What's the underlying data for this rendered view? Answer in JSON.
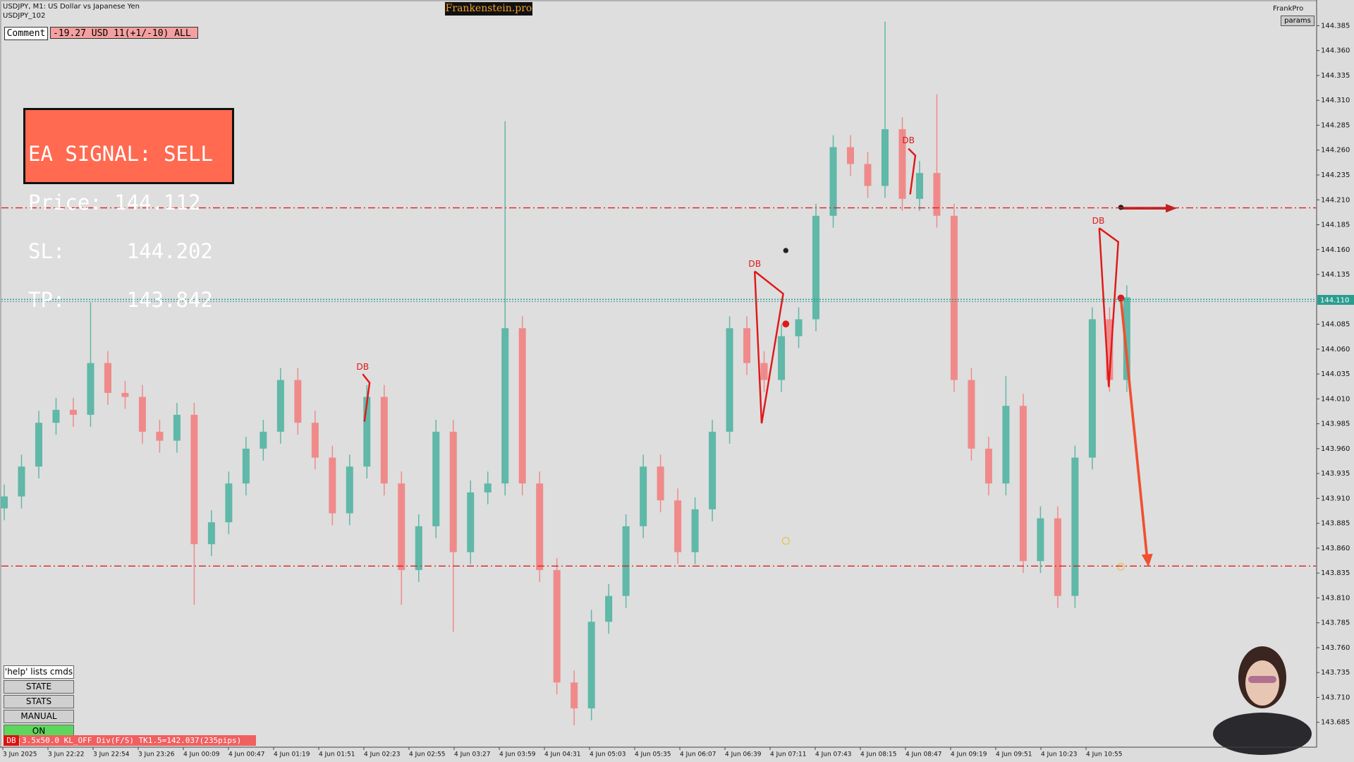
{
  "header": {
    "symbol": "USDJPY, M1:  US Dollar vs Japanese Yen",
    "account": "USDJPY_102",
    "brand": "Frankenstein.pro",
    "right_name": "FrankPro",
    "params": "params"
  },
  "comment": {
    "button": "Comment",
    "text": "-19.27 USD 11(+1/-10) ALL"
  },
  "signal": {
    "lines": [
      "EA SIGNAL: SELL",
      "Price: 144.112",
      "SL:     144.202",
      "TP:     143.842"
    ]
  },
  "buttons": [
    "'help' lists cmds",
    "STATE",
    "STATS",
    "MANUAL",
    "ON"
  ],
  "status": {
    "tag": "DB",
    "text": "3.5x50.0 KL_OFF Div(F/S) TK1.5=142.037(235pips)"
  },
  "patterns": [
    "DB",
    "DB",
    "DB",
    "DB"
  ],
  "chart_data": {
    "type": "candlestick",
    "open": [
      143.9,
      143.912,
      143.942,
      143.986,
      143.999,
      143.994,
      144.046,
      144.016,
      144.012,
      143.977,
      143.968,
      143.994,
      143.864,
      143.886,
      143.925,
      143.96,
      143.977,
      144.029,
      143.986,
      143.951,
      143.895,
      143.942,
      144.012,
      143.925,
      143.838,
      143.882,
      143.977,
      143.856,
      143.916,
      143.925,
      144.081,
      143.925,
      143.838,
      143.725,
      143.699,
      143.786,
      143.812,
      143.882,
      143.942,
      143.908,
      143.856,
      143.899,
      143.977,
      144.081,
      144.046,
      144.029,
      144.073,
      144.09,
      144.194,
      144.263,
      144.246,
      144.224,
      144.281,
      144.211,
      144.237,
      144.194,
      144.029,
      143.96,
      143.925,
      144.003,
      143.847,
      143.89,
      143.812,
      143.951,
      144.09,
      144.029
    ],
    "high": [
      143.924,
      143.954,
      143.998,
      144.011,
      144.011,
      144.107,
      144.058,
      144.028,
      144.024,
      143.989,
      144.006,
      144.006,
      143.898,
      143.937,
      143.972,
      143.989,
      144.041,
      144.041,
      143.998,
      143.963,
      143.954,
      144.024,
      144.024,
      143.937,
      143.894,
      143.989,
      143.989,
      143.928,
      143.937,
      144.289,
      144.093,
      143.937,
      143.85,
      143.737,
      143.798,
      143.824,
      143.894,
      143.954,
      143.954,
      143.92,
      143.911,
      143.989,
      144.093,
      144.093,
      144.058,
      144.085,
      144.102,
      144.206,
      144.275,
      144.275,
      144.258,
      144.389,
      144.293,
      144.249,
      144.316,
      144.206,
      144.041,
      143.972,
      144.033,
      144.015,
      143.902,
      143.902,
      143.963,
      144.102,
      144.102,
      144.124
    ],
    "low": [
      143.888,
      143.9,
      143.93,
      143.974,
      143.982,
      143.982,
      144.004,
      144.0,
      143.965,
      143.956,
      143.956,
      143.803,
      143.852,
      143.874,
      143.913,
      143.948,
      143.965,
      143.974,
      143.939,
      143.883,
      143.883,
      143.93,
      143.913,
      143.803,
      143.826,
      143.87,
      143.776,
      143.844,
      143.904,
      143.913,
      143.913,
      143.826,
      143.713,
      143.682,
      143.687,
      143.774,
      143.8,
      143.87,
      143.896,
      143.844,
      143.844,
      143.887,
      143.965,
      144.034,
      144.017,
      144.017,
      144.061,
      144.078,
      144.182,
      144.234,
      144.212,
      144.212,
      144.199,
      144.199,
      144.182,
      144.017,
      143.948,
      143.913,
      143.913,
      143.835,
      143.835,
      143.8,
      143.8,
      143.939,
      144.017,
      144.017
    ],
    "close": [
      143.912,
      143.942,
      143.986,
      143.999,
      143.994,
      144.046,
      144.016,
      144.012,
      143.977,
      143.968,
      143.994,
      143.864,
      143.886,
      143.925,
      143.96,
      143.977,
      144.029,
      143.986,
      143.951,
      143.895,
      143.942,
      144.012,
      143.925,
      143.838,
      143.882,
      143.977,
      143.856,
      143.916,
      143.925,
      144.081,
      143.925,
      143.838,
      143.725,
      143.699,
      143.786,
      143.812,
      143.882,
      143.942,
      143.908,
      143.856,
      143.899,
      143.977,
      144.081,
      144.046,
      144.029,
      144.073,
      144.09,
      144.194,
      144.263,
      144.246,
      144.224,
      144.281,
      144.211,
      144.237,
      144.194,
      144.029,
      143.96,
      143.925,
      144.003,
      143.847,
      143.89,
      143.812,
      143.951,
      144.09,
      144.029,
      144.112
    ],
    "up_color": "#5fb8a8",
    "down_color": "#f08a8a",
    "ylim": [
      143.66,
      144.408
    ],
    "yticks": [
      144.385,
      {
        "value": 144.36,
        "label": "144.360"
      },
      144.335,
      {
        "value": 144.31,
        "label": "144.310"
      },
      144.285,
      {
        "value": 144.26,
        "label": "144.260"
      },
      144.235,
      {
        "value": 144.21,
        "label": "144.210"
      },
      144.185,
      {
        "value": 144.16,
        "label": "144.160"
      },
      144.135,
      144.085,
      {
        "value": 144.06,
        "label": "144.060"
      },
      144.035,
      {
        "value": 144.01,
        "label": "144.010"
      },
      143.985,
      {
        "value": 143.96,
        "label": "143.960"
      },
      143.935,
      {
        "value": 143.91,
        "label": "143.910"
      },
      143.885,
      {
        "value": 143.86,
        "label": "143.860"
      },
      143.835,
      {
        "value": 143.81,
        "label": "143.810"
      },
      143.785,
      {
        "value": 143.76,
        "label": "143.760"
      },
      143.735,
      {
        "value": 143.71,
        "label": "143.710"
      },
      143.685
    ],
    "x_labels": [
      "3 Jun 2025",
      "3 Jun 22:22",
      "3 Jun 22:54",
      "3 Jun 23:26",
      "4 Jun 00:09",
      "4 Jun 00:47",
      "4 Jun 01:19",
      "4 Jun 01:51",
      "4 Jun 02:23",
      "4 Jun 02:55",
      "4 Jun 03:27",
      "4 Jun 03:59",
      "4 Jun 04:31",
      "4 Jun 05:03",
      "4 Jun 05:35",
      "4 Jun 06:07",
      "4 Jun 06:39",
      "4 Jun 07:11",
      "4 Jun 07:43",
      "4 Jun 08:15",
      "4 Jun 08:47",
      "4 Jun 09:19",
      "4 Jun 09:51",
      "4 Jun 10:23",
      "4 Jun 10:55"
    ],
    "stop_loss": 144.202,
    "take_profit": 143.842,
    "bid": {
      "value": 144.11,
      "label": "144.110"
    }
  }
}
